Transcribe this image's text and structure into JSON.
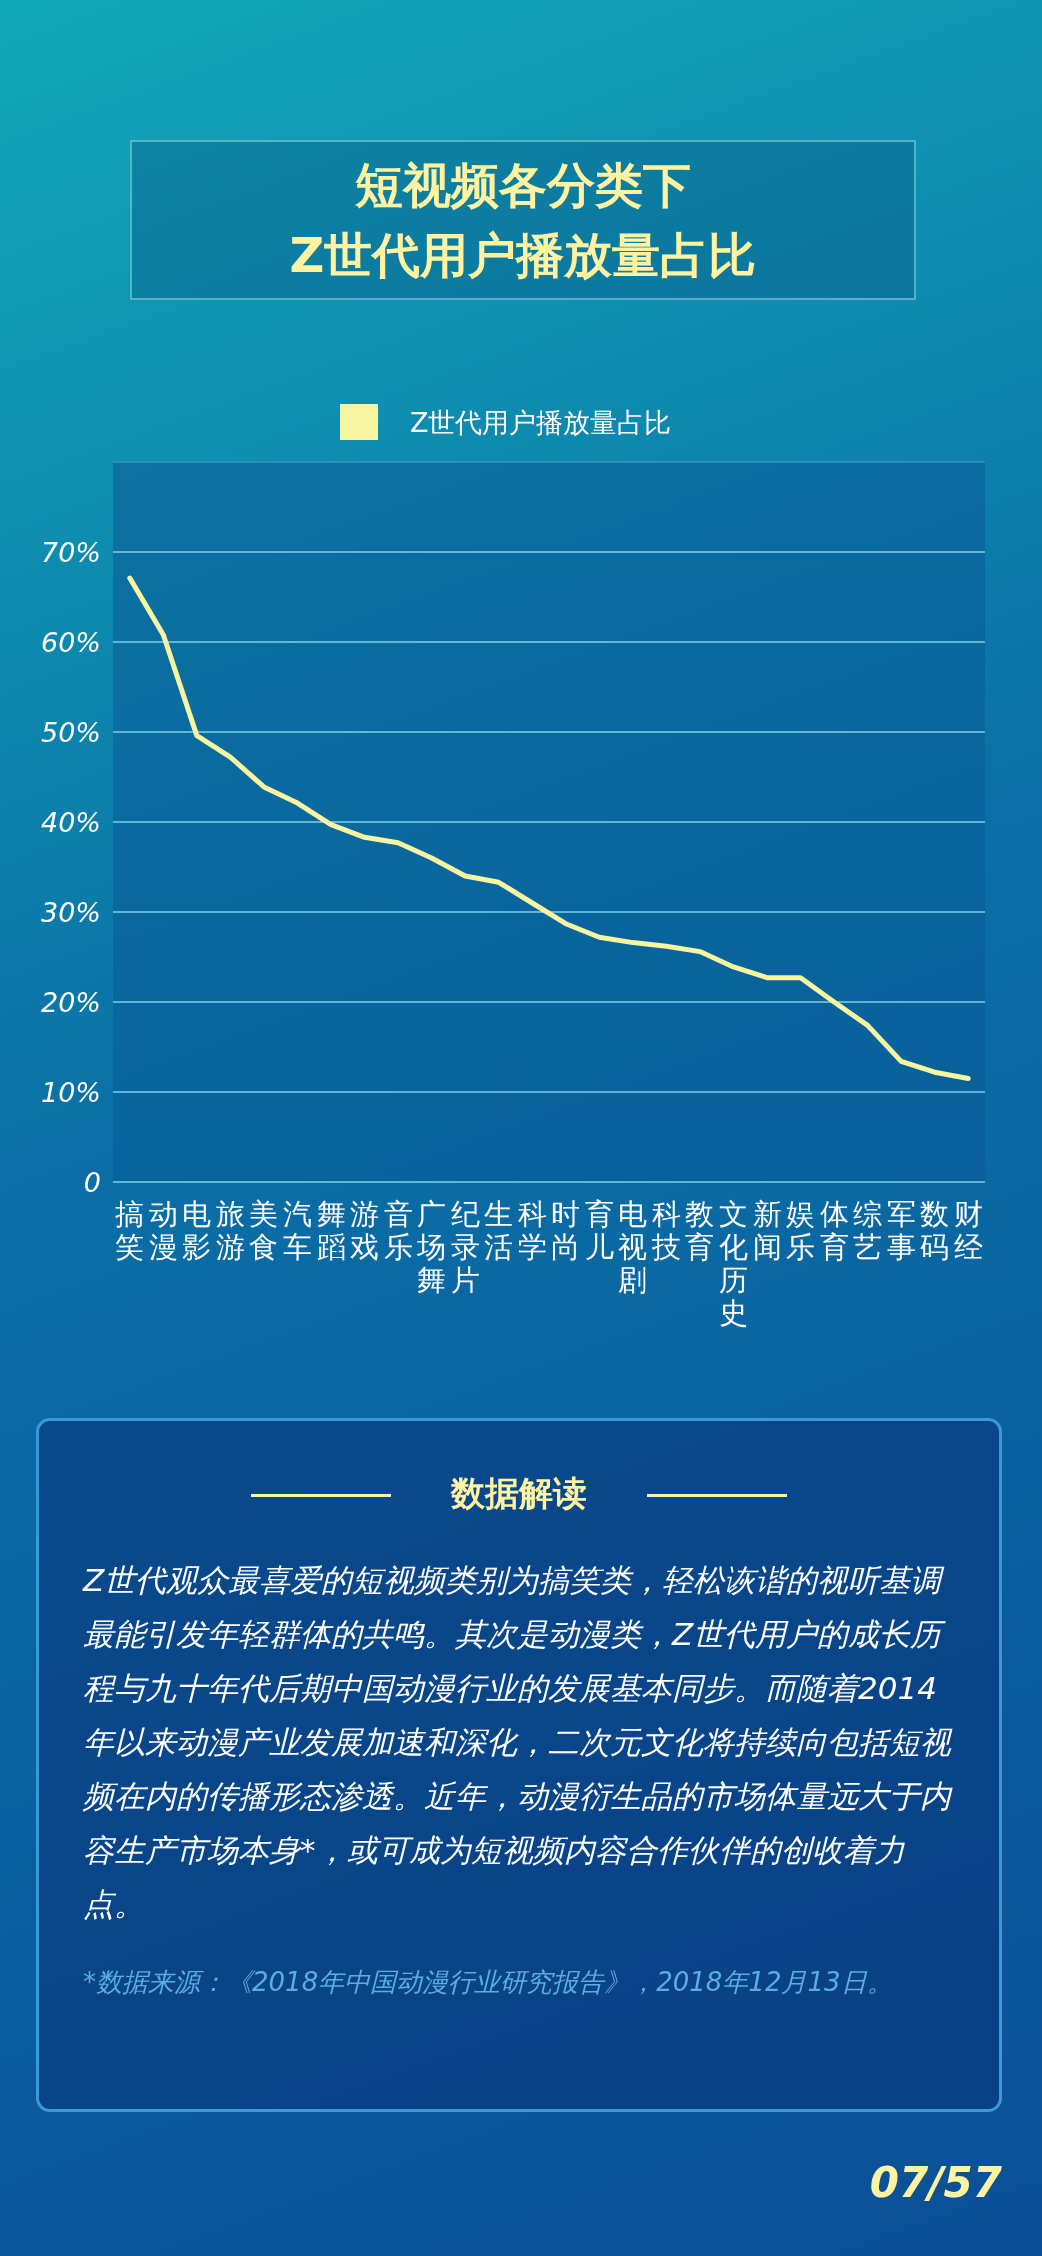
{
  "chart_data": {
    "type": "line",
    "title": "短视频各分类下\nZ世代用户播放量占比",
    "categories": [
      "搞笑",
      "动漫",
      "电影",
      "旅游",
      "美食",
      "汽车",
      "舞蹈",
      "游戏",
      "音乐",
      "广场舞",
      "纪录片",
      "生活",
      "科学",
      "时尚",
      "育儿",
      "电视剧",
      "科技",
      "教育",
      "文化历史",
      "新闻",
      "娱乐",
      "体育",
      "综艺",
      "军事",
      "数码",
      "财经"
    ],
    "series": [
      {
        "name": "Z世代用户播放量占比",
        "color": "#f7f5a0",
        "values": [
          67.1,
          60.8,
          49.6,
          47.2,
          43.9,
          42.1,
          39.7,
          38.3,
          37.7,
          36.0,
          34.0,
          33.3,
          31.0,
          28.7,
          27.2,
          26.6,
          26.2,
          25.6,
          23.9,
          22.7,
          22.7,
          20.0,
          17.4,
          13.4,
          12.2,
          11.5
        ]
      }
    ],
    "ylim": [
      0,
      80
    ],
    "yticks": [
      0,
      {
        "value": 10,
        "label": "10%"
      },
      {
        "value": 20,
        "label": "20%"
      },
      {
        "value": 30,
        "label": "30%"
      },
      {
        "value": 40,
        "label": "40%"
      },
      {
        "value": 50,
        "label": "50%"
      },
      {
        "value": 60,
        "label": "60%"
      },
      {
        "value": 70,
        "label": "70%"
      }
    ],
    "grid": "y",
    "legend": "top",
    "marker": "none",
    "line_style": "solid",
    "annotations": [
      "数据解读",
      "Z世代观众最喜爱的短视频类别为搞笑类，轻松诙谐的视听基调最能引发年轻群体的共鸣。其次是动漫类，Z世代用户的成长历程与九十年代后期中国动漫行业的发展基本同步。而随着2014年以来动漫产业发展加速和深化，二次元文化将持续向包括短视频在内的传播形态渗透。近年，动漫衍生品的市场体量远大于内容生产市场本身*，或可成为短视频内容合作伙伴的创收着力点。",
      "*数据来源：《2018年中国动漫行业研究报告》，2018年12月13日。",
      "07/57"
    ]
  }
}
